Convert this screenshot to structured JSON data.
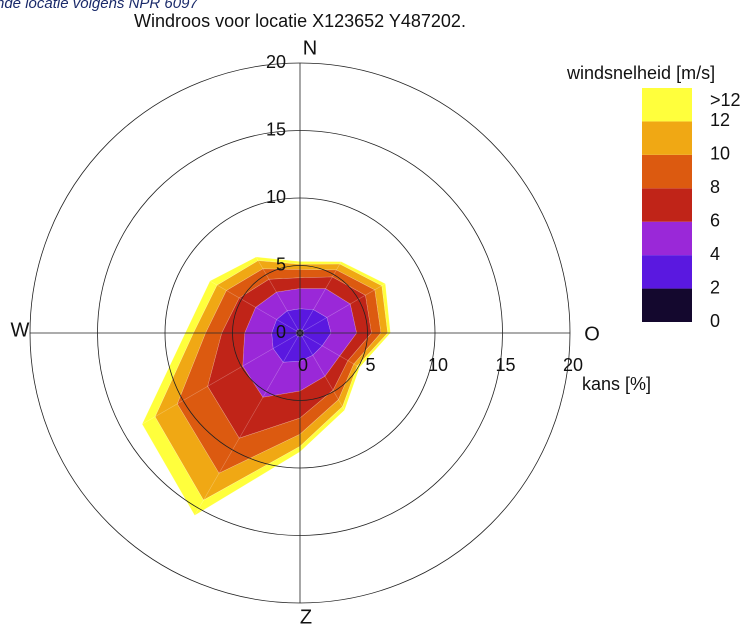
{
  "note": "nde locatie volgens NPR 6097",
  "chart_data": {
    "type": "windrose",
    "title": "Windroos voor locatie X123652 Y487202.",
    "compass": [
      "N",
      "O",
      "Z",
      "W"
    ],
    "radial_label": "kans [%]",
    "theta": [
      0,
      30,
      60,
      90,
      120,
      150,
      180,
      210,
      240,
      270,
      300,
      330
    ],
    "rlim": [
      0,
      20
    ],
    "rticks": [
      0,
      5,
      10,
      15,
      20
    ],
    "grid": true,
    "colorbar": {
      "title": "windsnelheid [m/s]",
      "lim": [
        0,
        14
      ],
      "ticks": [
        0,
        2,
        4,
        6,
        8,
        10,
        12,
        {
          "value": 13.2,
          "label": ">12"
        }
      ]
    },
    "series": [
      {
        "color": "#14082e",
        "values": [
          0.3,
          0.3,
          0.3,
          0.3,
          0.3,
          0.3,
          0.3,
          0.3,
          0.3,
          0.3,
          0.3,
          0.3
        ]
      },
      {
        "color": "#5a18e0",
        "values": [
          1.5,
          1.7,
          2,
          2,
          1.6,
          1.6,
          1.8,
          2.2,
          2,
          1.8,
          1.7,
          1.6
        ]
      },
      {
        "color": "#9a28d8",
        "values": [
          1.5,
          1.8,
          2,
          1.9,
          1.5,
          1.8,
          2.2,
          3.0,
          2.6,
          2.0,
          1.8,
          1.6
        ]
      },
      {
        "color": "#c02418",
        "values": [
          0.8,
          1,
          1.3,
          1.1,
          0.7,
          1.2,
          2,
          3.5,
          3,
          1.7,
          1.4,
          1.1
        ]
      },
      {
        "color": "#dc5a10",
        "values": [
          0.6,
          0.6,
          0.8,
          0.7,
          0.5,
          0.8,
          1.2,
          3,
          2.6,
          1.2,
          1.1,
          0.9
        ]
      },
      {
        "color": "#f0a814",
        "values": [
          0.4,
          0.5,
          0.6,
          0.5,
          0.3,
          0.6,
          0.9,
          2.3,
          1.9,
          0.9,
          0.8,
          0.7
        ]
      },
      {
        "color": "#ffff3c",
        "values": [
          0.2,
          0.2,
          0.3,
          0.2,
          0.2,
          0.3,
          0.4,
          1.3,
          1.1,
          0.6,
          0.6,
          0.3
        ]
      }
    ]
  }
}
